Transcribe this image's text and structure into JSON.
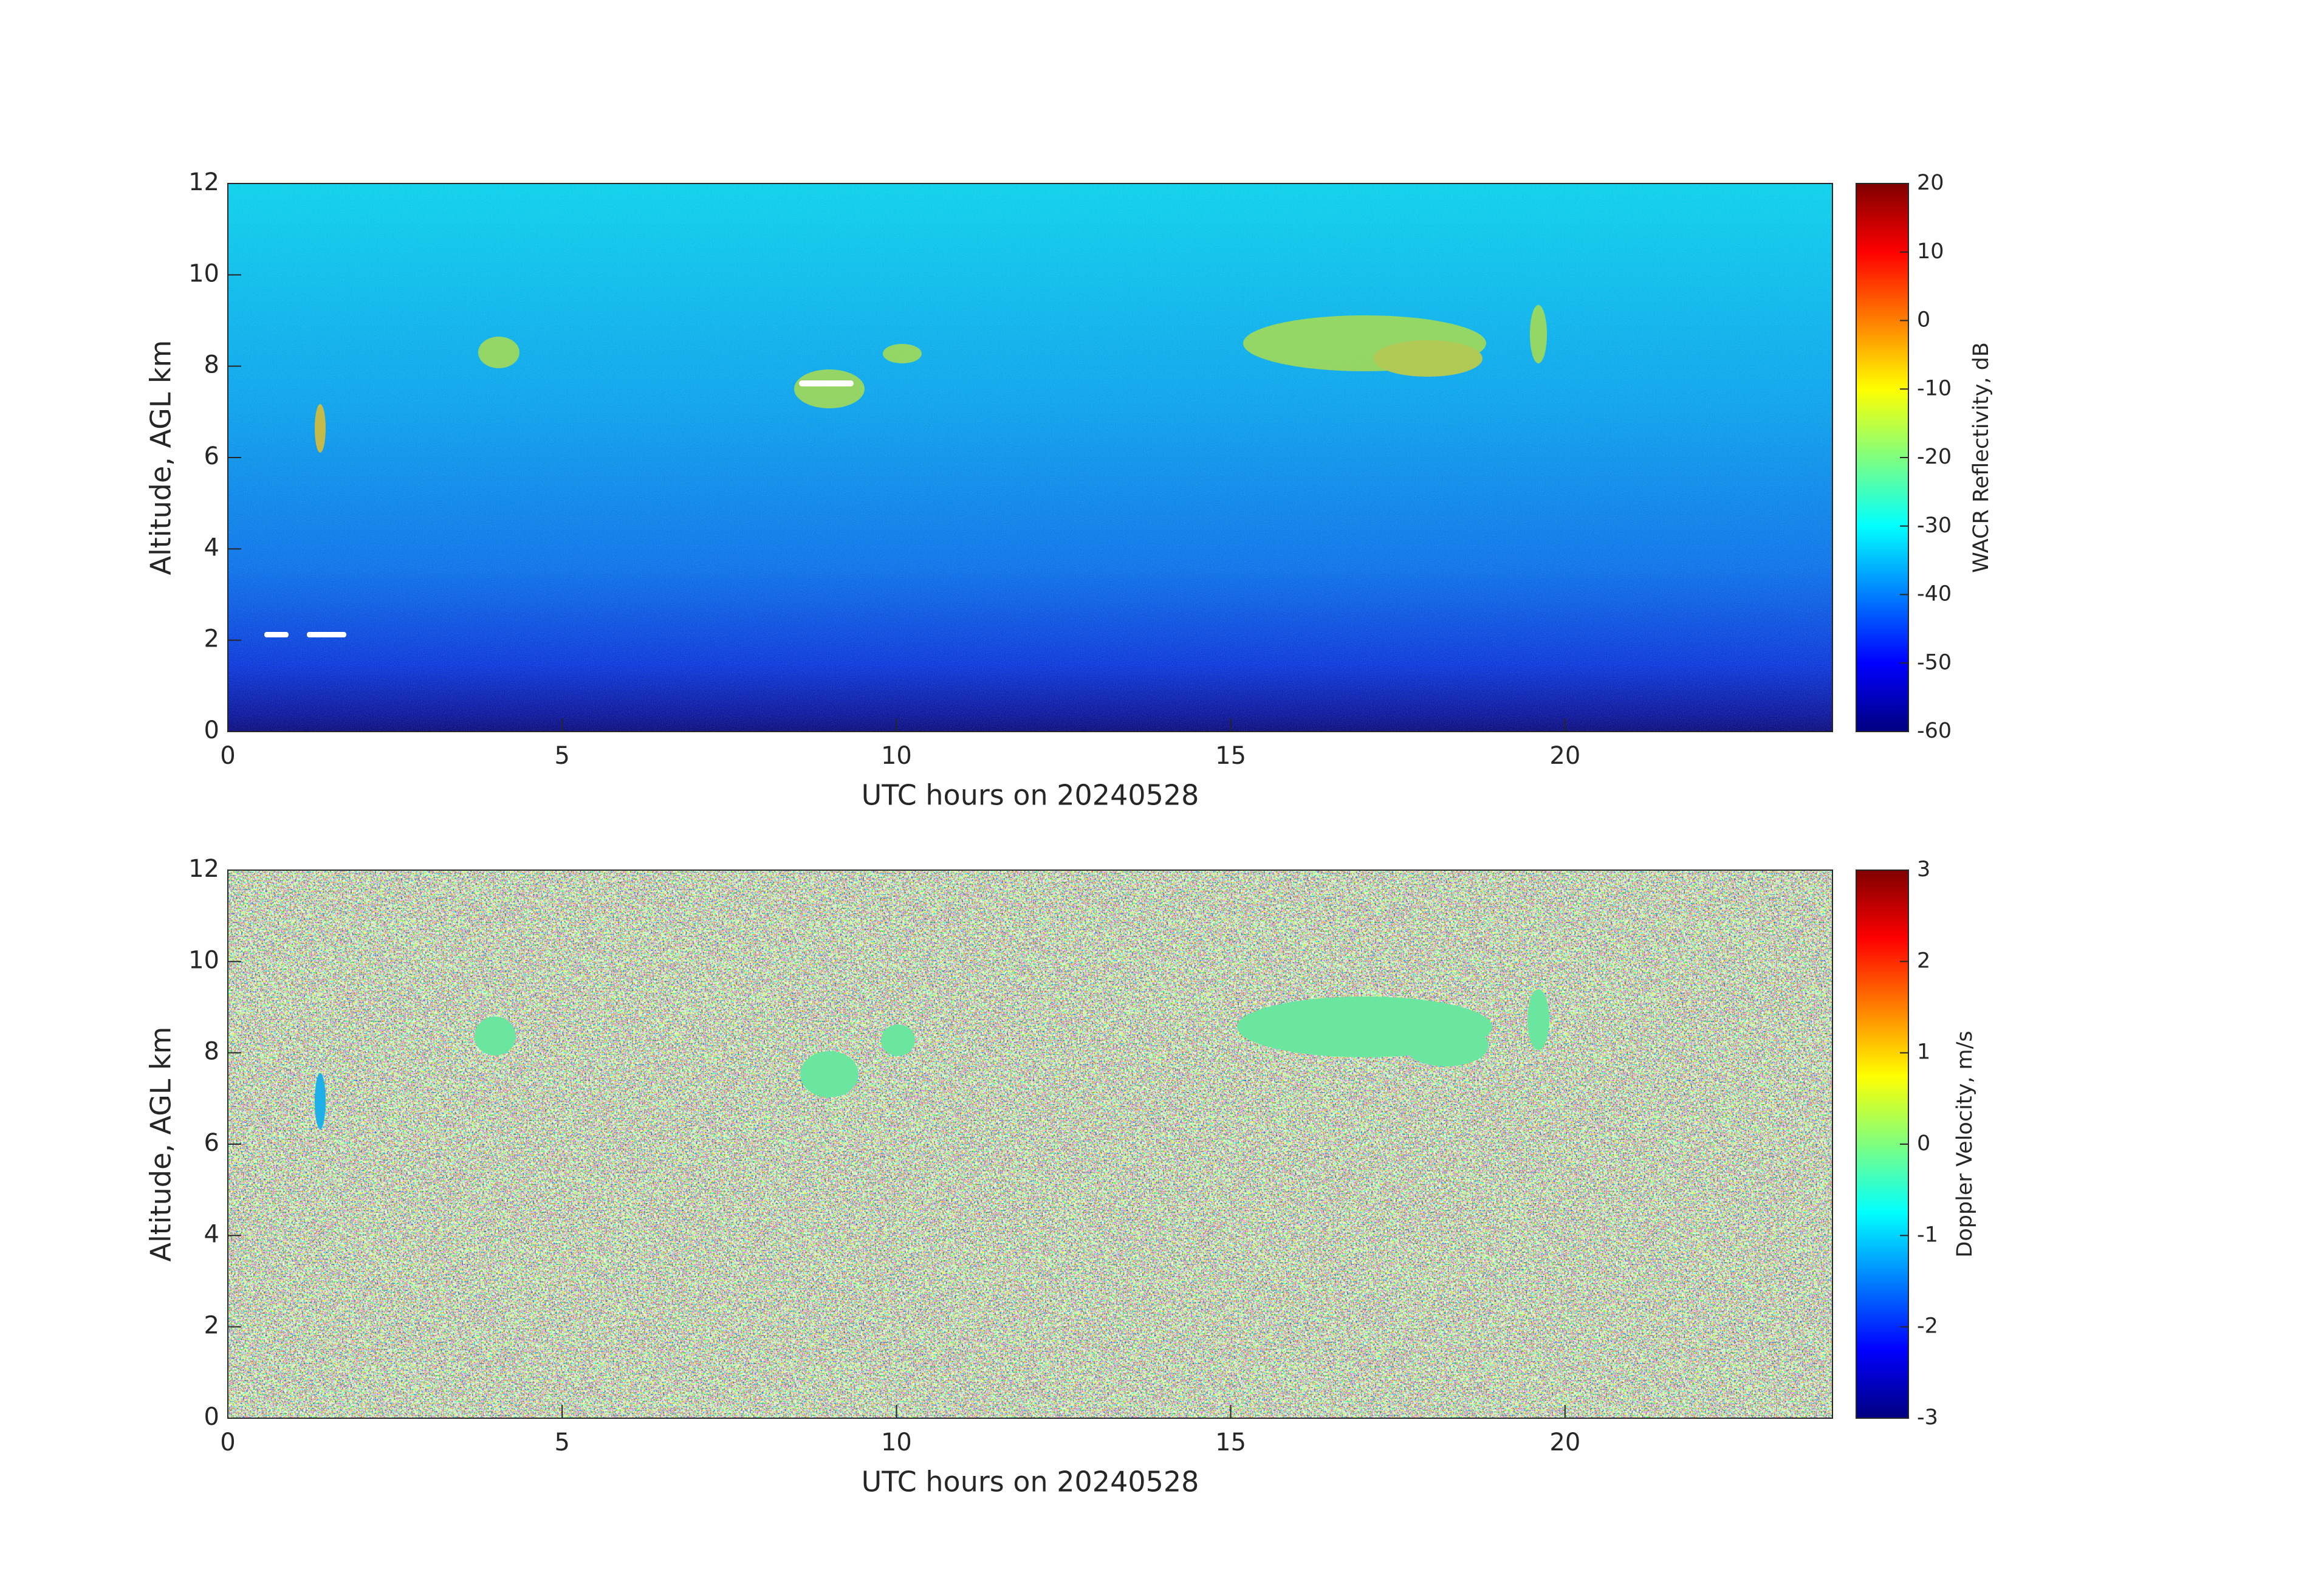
{
  "chart_data": [
    {
      "type": "heatmap",
      "xlabel": "UTC hours on 20240528",
      "ylabel": "Altitude, AGL km",
      "xlim": [
        0,
        24
      ],
      "xticks": [
        0,
        5,
        10,
        15,
        20
      ],
      "ylim": [
        0,
        12
      ],
      "yticks": [
        0,
        2,
        4,
        6,
        8,
        10,
        12
      ],
      "colorbar": {
        "label": "WACR Reflectivity, dB",
        "lim": [
          -60,
          20
        ],
        "ticks": [
          -60,
          -50,
          -40,
          -30,
          -20,
          -10,
          0,
          10,
          20
        ],
        "colormap": "jet"
      }
    },
    {
      "type": "heatmap",
      "xlabel": "UTC hours on 20240528",
      "ylabel": "Altitude, AGL km",
      "xlim": [
        0,
        24
      ],
      "xticks": [
        0,
        5,
        10,
        15,
        20
      ],
      "ylim": [
        0,
        12
      ],
      "yticks": [
        0,
        2,
        4,
        6,
        8,
        10,
        12
      ],
      "colorbar": {
        "label": "Doppler Velocity, m/s",
        "lim": [
          -3,
          3
        ],
        "ticks": [
          -3,
          -2,
          -1,
          0,
          1,
          2,
          3
        ],
        "colormap": "jet"
      }
    }
  ]
}
